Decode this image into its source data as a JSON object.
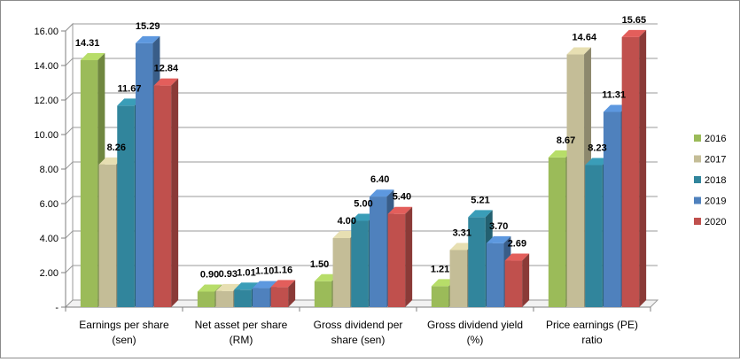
{
  "chart_data": {
    "type": "bar",
    "title": "",
    "xlabel": "",
    "ylabel": "",
    "ylim": [
      0,
      16
    ],
    "yticks": [
      0,
      2,
      4,
      6,
      8,
      10,
      12,
      14,
      16
    ],
    "ytick_labels": [
      "-",
      "2.00",
      "4.00",
      "6.00",
      "8.00",
      "10.00",
      "12.00",
      "14.00",
      "16.00"
    ],
    "grid": true,
    "legend_position": "right",
    "categories": [
      [
        "Earnings per share",
        "(sen)"
      ],
      [
        "Net asset per share",
        "(RM)"
      ],
      [
        "Gross dividend per",
        "share (sen)"
      ],
      [
        "Gross dividend yield",
        "(%)"
      ],
      [
        "Price earnings (PE)",
        "ratio"
      ]
    ],
    "series": [
      {
        "name": "2016",
        "color": "#9bbb59",
        "values": [
          14.31,
          0.9,
          1.5,
          1.21,
          8.67
        ]
      },
      {
        "name": "2017",
        "color": "#c4bd97",
        "values": [
          8.26,
          0.93,
          4.0,
          3.31,
          14.64
        ]
      },
      {
        "name": "2018",
        "color": "#31859c",
        "values": [
          11.67,
          1.01,
          5.0,
          5.21,
          8.23
        ]
      },
      {
        "name": "2019",
        "color": "#4f81bd",
        "values": [
          15.29,
          1.1,
          6.4,
          3.7,
          11.31
        ]
      },
      {
        "name": "2020",
        "color": "#c0504d",
        "values": [
          12.84,
          1.16,
          5.4,
          2.69,
          15.65
        ]
      }
    ]
  }
}
